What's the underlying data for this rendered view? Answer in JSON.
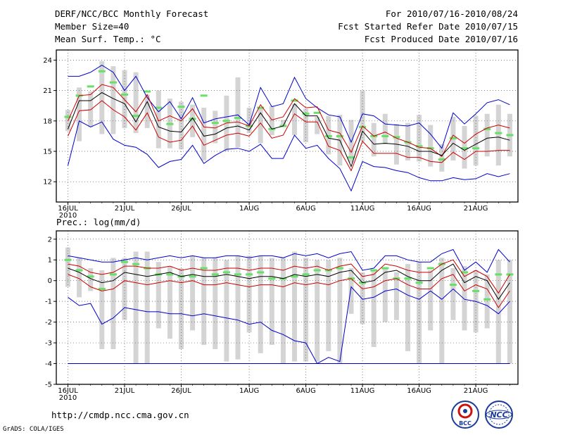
{
  "header": {
    "title": "DERF/NCC/BCC Monthly Forecast",
    "member_size": "Member Size=40",
    "variable_top": "Mean Surf. Temp.: °C",
    "period": "For 2010/07/16-2010/08/24",
    "refer_date": "Fcst Started Refer Date 2010/07/15",
    "produced_date": "Fcst Produced Date 2010/07/16"
  },
  "lower_title": "Prec.: log(mm/d)",
  "footer": {
    "url": "http://cmdp.ncc.cma.gov.cn",
    "grads": "GrADS: COLA/IGES",
    "logo_left_text": "BCC",
    "logo_right_text": "NCC"
  },
  "colors": {
    "envelope": "#0000cc",
    "spread": "#cc0000",
    "mean": "#000000",
    "box": "#d4d4d4",
    "marker": "#66e066"
  },
  "chart_data": [
    {
      "type": "box",
      "title": "Mean Surf. Temp.: °C",
      "x_ticks": [
        "16JUL",
        "21JUL",
        "26JUL",
        "1AUG",
        "6AUG",
        "11AUG",
        "16AUG",
        "21AUG"
      ],
      "x_subtick": "2010",
      "y_ticks": [
        "12",
        "15",
        "18",
        "21",
        "24"
      ],
      "ylim": [
        10,
        25
      ],
      "days": 40,
      "series": {
        "max": [
          22.4,
          22.4,
          22.8,
          23.5,
          22.8,
          21.0,
          22.4,
          20.3,
          18.9,
          19.9,
          18.2,
          20.3,
          17.8,
          18.2,
          18.4,
          18.6,
          17.6,
          21.3,
          19.4,
          19.7,
          22.3,
          20.2,
          19.3,
          18.6,
          18.4,
          15.9,
          18.7,
          18.5,
          17.7,
          17.6,
          17.5,
          17.8,
          16.7,
          15.3,
          18.8,
          17.7,
          18.7,
          19.8,
          20.1,
          19.6
        ],
        "p_hi": [
          18.0,
          20.5,
          20.6,
          21.6,
          21.3,
          20.1,
          18.9,
          20.6,
          18.0,
          18.5,
          18.0,
          19.2,
          17.4,
          17.3,
          17.8,
          17.9,
          17.5,
          19.6,
          18.1,
          18.4,
          20.2,
          19.3,
          19.4,
          17.1,
          16.8,
          14.9,
          17.5,
          16.5,
          16.9,
          16.3,
          15.9,
          15.4,
          15.3,
          14.5,
          16.6,
          15.8,
          16.7,
          17.3,
          17.6,
          17.3
        ],
        "mean": [
          17.2,
          20.0,
          20.0,
          20.8,
          20.2,
          19.7,
          17.9,
          19.9,
          17.4,
          17.0,
          16.9,
          18.3,
          16.5,
          16.7,
          17.3,
          17.5,
          17.1,
          18.8,
          17.2,
          17.5,
          19.7,
          18.5,
          18.5,
          16.3,
          16.1,
          13.5,
          17.0,
          15.7,
          15.8,
          15.7,
          15.5,
          15.0,
          15.0,
          14.6,
          15.8,
          15.1,
          15.7,
          16.3,
          16.4,
          16.1
        ],
        "p_lo": [
          16.5,
          19.0,
          19.1,
          20.0,
          19.1,
          18.4,
          17.1,
          18.8,
          16.4,
          15.9,
          16.1,
          17.5,
          15.6,
          16.1,
          16.6,
          16.8,
          16.5,
          17.8,
          16.3,
          16.6,
          18.7,
          17.9,
          17.9,
          15.5,
          15.1,
          13.1,
          16.0,
          14.8,
          14.8,
          14.8,
          14.4,
          14.4,
          14.0,
          13.9,
          14.9,
          14.2,
          15.0,
          15.0,
          15.1,
          15.1
        ],
        "min": [
          13.6,
          18.0,
          17.4,
          17.9,
          16.2,
          15.6,
          15.4,
          14.7,
          13.4,
          14.0,
          14.2,
          15.6,
          13.8,
          14.6,
          15.2,
          15.3,
          15.0,
          15.7,
          14.3,
          14.3,
          16.6,
          15.3,
          15.6,
          14.3,
          13.3,
          11.1,
          14.0,
          13.5,
          13.4,
          13.1,
          12.9,
          12.4,
          12.1,
          12.1,
          12.4,
          12.2,
          12.3,
          12.8,
          12.5,
          12.8
        ],
        "box_top": [
          19.1,
          21.3,
          20.9,
          23.9,
          23.4,
          23.0,
          22.8,
          20.6,
          21.0,
          20.2,
          19.9,
          19.6,
          19.3,
          19.0,
          20.5,
          22.3,
          19.3,
          19.2,
          19.5,
          18.1,
          19.7,
          19.2,
          18.4,
          18.5,
          18.6,
          18.1,
          21.0,
          17.8,
          18.7,
          17.7,
          17.8,
          18.6,
          17.6,
          15.7,
          18.4,
          17.5,
          18.5,
          18.7,
          19.6,
          18.7
        ],
        "box_bot": [
          17.0,
          16.0,
          17.4,
          16.7,
          16.7,
          17.3,
          16.8,
          17.3,
          15.3,
          15.3,
          15.2,
          16.4,
          14.1,
          15.8,
          15.0,
          15.4,
          16.8,
          15.8,
          16.6,
          17.5,
          16.6,
          15.9,
          16.7,
          14.7,
          13.6,
          13.9,
          16.0,
          14.5,
          15.7,
          13.7,
          14.1,
          14.0,
          13.5,
          13.0,
          14.1,
          13.3,
          13.6,
          14.5,
          13.6,
          14.5
        ],
        "marker": [
          18.4,
          20.5,
          21.4,
          22.9,
          21.8,
          20.6,
          18.5,
          20.9,
          19.3,
          17.7,
          19.4,
          18.2,
          20.5,
          17.8,
          18.0,
          18.3,
          17.5,
          19.3,
          17.2,
          17.5,
          20.0,
          18.7,
          18.8,
          16.5,
          16.5,
          14.4,
          17.4,
          16.5,
          16.5,
          16.4,
          15.9,
          15.5,
          15.3,
          14.2,
          16.3,
          15.3,
          15.3,
          17.2,
          16.8,
          16.6
        ]
      }
    },
    {
      "type": "box",
      "title": "Prec.: log(mm/d)",
      "x_ticks": [
        "16JUL",
        "21JUL",
        "26JUL",
        "1AUG",
        "6AUG",
        "11AUG",
        "16AUG",
        "21AUG"
      ],
      "x_subtick": "2010",
      "y_ticks": [
        "-5",
        "-4",
        "-3",
        "-2",
        "-1",
        "0",
        "1",
        "2"
      ],
      "ylim": [
        -5,
        2.4
      ],
      "days": 40,
      "series": {
        "max": [
          1.2,
          1.1,
          1.0,
          0.9,
          0.9,
          1.0,
          1.1,
          1.0,
          1.1,
          1.2,
          1.1,
          1.2,
          1.1,
          1.1,
          1.2,
          1.2,
          1.1,
          1.2,
          1.2,
          1.1,
          1.3,
          1.2,
          1.3,
          1.1,
          1.3,
          1.4,
          0.5,
          0.6,
          1.2,
          1.2,
          1.0,
          0.9,
          0.9,
          1.3,
          1.5,
          0.5,
          0.9,
          0.4,
          1.5,
          0.9
        ],
        "p_hi": [
          0.8,
          0.7,
          0.4,
          0.3,
          0.4,
          0.7,
          0.7,
          0.6,
          0.6,
          0.7,
          0.5,
          0.6,
          0.5,
          0.5,
          0.6,
          0.6,
          0.5,
          0.6,
          0.6,
          0.5,
          0.7,
          0.6,
          0.7,
          0.5,
          0.7,
          0.8,
          0.2,
          0.3,
          0.8,
          0.7,
          0.5,
          0.4,
          0.4,
          0.8,
          1.0,
          0.2,
          0.5,
          0.2,
          -0.6,
          0.3
        ],
        "mean": [
          0.6,
          0.4,
          0.1,
          -0.1,
          0.0,
          0.4,
          0.3,
          0.2,
          0.3,
          0.4,
          0.2,
          0.3,
          0.2,
          0.2,
          0.3,
          0.2,
          0.1,
          0.2,
          0.2,
          0.1,
          0.3,
          0.2,
          0.3,
          0.2,
          0.4,
          0.5,
          -0.1,
          0.0,
          0.4,
          0.5,
          0.2,
          0.0,
          0.0,
          0.5,
          0.8,
          -0.1,
          0.2,
          0.0,
          -0.9,
          -0.1
        ],
        "p_lo": [
          0.3,
          0.1,
          -0.3,
          -0.5,
          -0.4,
          0.0,
          -0.1,
          -0.2,
          -0.1,
          0.0,
          -0.1,
          0.0,
          -0.2,
          -0.2,
          -0.1,
          -0.2,
          -0.3,
          -0.2,
          -0.2,
          -0.3,
          -0.1,
          -0.2,
          -0.1,
          -0.2,
          0.0,
          0.1,
          -0.4,
          -0.3,
          0.0,
          0.1,
          -0.2,
          -0.4,
          -0.4,
          0.1,
          0.3,
          -0.5,
          -0.2,
          -0.4,
          -1.3,
          -0.5
        ],
        "min": [
          -0.8,
          -1.2,
          -1.1,
          -2.1,
          -1.8,
          -1.3,
          -1.4,
          -1.5,
          -1.5,
          -1.6,
          -1.6,
          -1.7,
          -1.6,
          -1.7,
          -1.8,
          -1.9,
          -2.1,
          -2.0,
          -2.4,
          -2.6,
          -2.9,
          -3.0,
          -4.0,
          -3.7,
          -3.9,
          -0.3,
          -0.9,
          -0.8,
          -0.5,
          -0.4,
          -0.7,
          -0.9,
          -0.5,
          -0.9,
          -0.4,
          -0.9,
          -1.0,
          -1.2,
          -1.6,
          -1.0
        ],
        "box_top": [
          1.6,
          1.1,
          0.6,
          0.5,
          1.1,
          1.1,
          1.4,
          1.4,
          0.9,
          0.7,
          0.6,
          1.2,
          1.1,
          1.1,
          1.0,
          1.2,
          1.2,
          1.2,
          1.1,
          1.1,
          1.4,
          1.1,
          1.0,
          1.0,
          1.1,
          0.6,
          0.4,
          0.5,
          0.6,
          0.4,
          0.8,
          0.9,
          0.5,
          1.1,
          0.6,
          0.7,
          0.5,
          0.3,
          1.0,
          1.0
        ],
        "box_bot": [
          -0.3,
          -0.8,
          -0.5,
          -3.3,
          -3.3,
          -1.9,
          -4.0,
          -4.0,
          -2.3,
          -2.8,
          -3.3,
          -2.4,
          -3.1,
          -3.3,
          -3.9,
          -3.8,
          -2.5,
          -3.5,
          -3.1,
          -4.0,
          -3.9,
          -3.9,
          -3.9,
          -3.4,
          -4.0,
          -1.6,
          -2.1,
          -3.2,
          -2.0,
          -1.9,
          -3.4,
          -4.0,
          -2.4,
          -4.0,
          -1.9,
          -2.4,
          -2.5,
          -2.3,
          -4.0,
          -4.0
        ],
        "marker": [
          1.0,
          0.5,
          0.2,
          -0.4,
          0.3,
          0.9,
          0.8,
          0.6,
          0.3,
          0.3,
          0.2,
          0.2,
          0.6,
          0.3,
          0.4,
          0.3,
          0.3,
          0.4,
          0.1,
          0.1,
          0.2,
          0.3,
          0.5,
          0.5,
          0.6,
          0.1,
          -0.1,
          0.5,
          0.6,
          0.1,
          0.1,
          -0.1,
          0.6,
          0.8,
          -0.2,
          0.4,
          -0.5,
          -0.9,
          0.3,
          0.3
        ],
        "floor": -4.0
      }
    }
  ]
}
